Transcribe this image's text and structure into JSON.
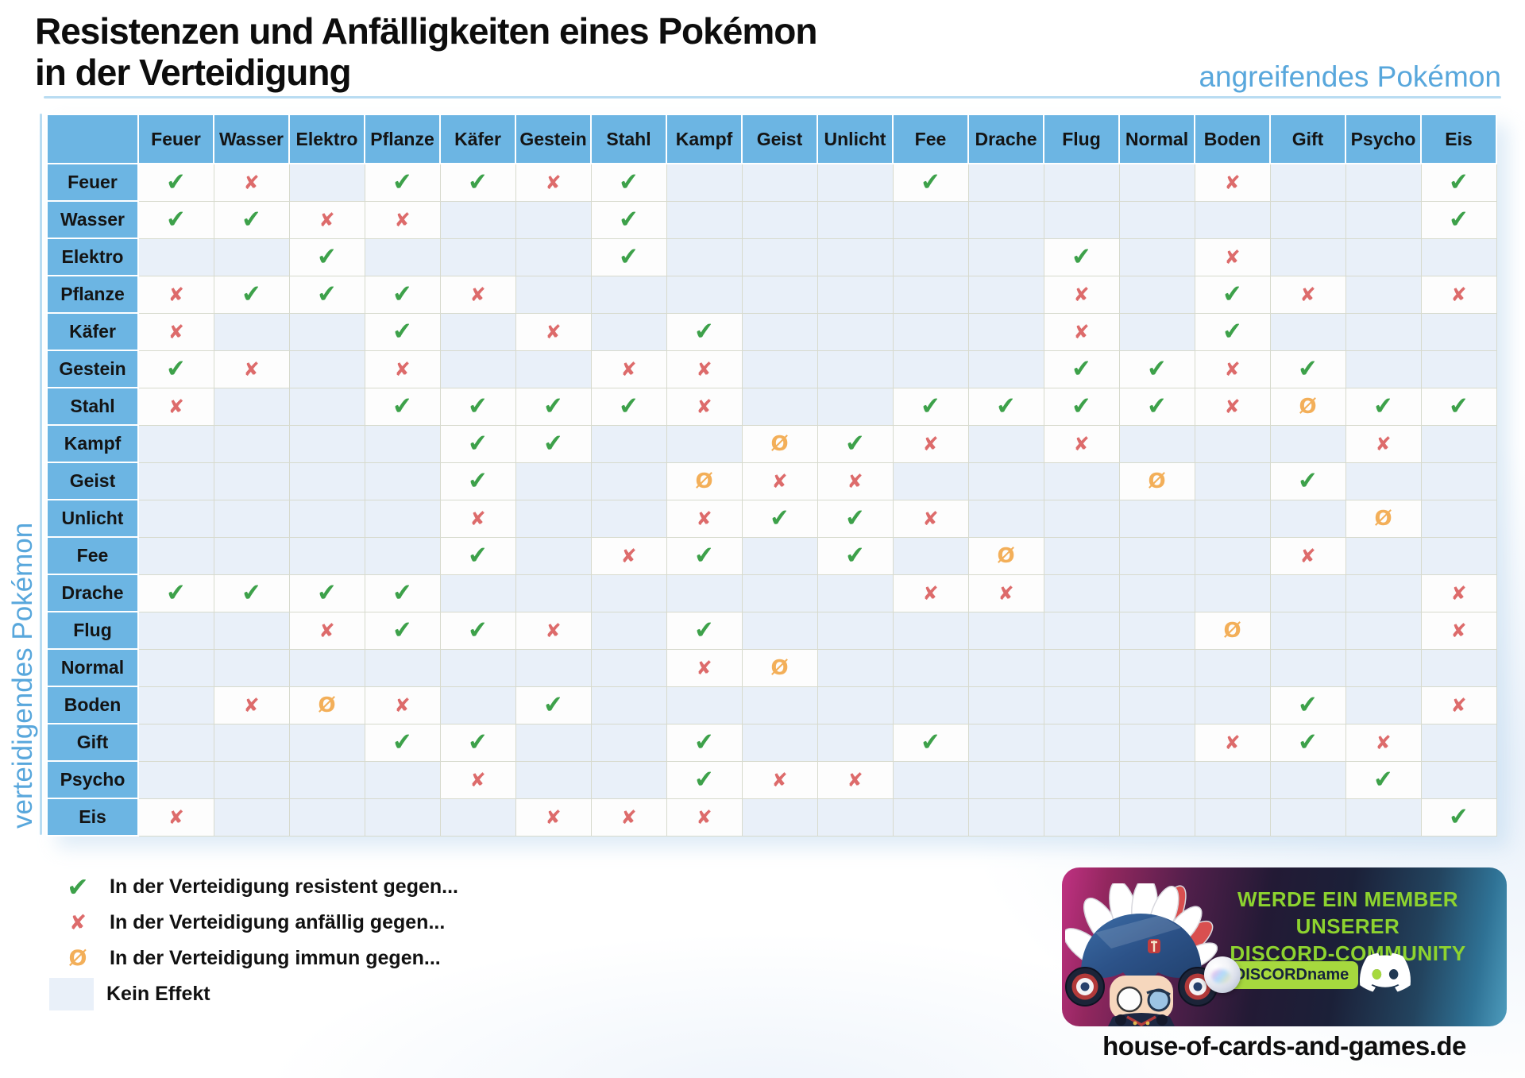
{
  "title": {
    "line1": "Resistenzen und Anfälligkeiten eines Pokémon",
    "line2": "in der Verteidigung"
  },
  "axis_labels": {
    "attacking": "angreifendes Pokémon",
    "defending": "verteidigendes Pokémon"
  },
  "marks": {
    "r": {
      "symbol": "✔",
      "color": "#3da14a",
      "meaning": "resistent"
    },
    "w": {
      "symbol": "✘",
      "color": "#dd6b6b",
      "meaning": "anfällig"
    },
    "i": {
      "symbol": "Ø",
      "color": "#f3af59",
      "meaning": "immun"
    }
  },
  "chart_data": {
    "type": "table",
    "title": "Resistenzen und Anfälligkeiten eines Pokémon in der Verteidigung",
    "x_axis_label": "angreifendes Pokémon",
    "y_axis_label": "verteidigendes Pokémon",
    "cell_codes": {
      "r": "in der Verteidigung resistent gegen",
      "w": "in der Verteidigung anfällig gegen",
      "i": "in der Verteidigung immun gegen",
      "": "kein Effekt"
    },
    "columns": [
      "Feuer",
      "Wasser",
      "Elektro",
      "Pflanze",
      "Käfer",
      "Gestein",
      "Stahl",
      "Kampf",
      "Geist",
      "Unlicht",
      "Fee",
      "Drache",
      "Flug",
      "Normal",
      "Boden",
      "Gift",
      "Psycho",
      "Eis"
    ],
    "rows": [
      {
        "name": "Feuer",
        "cells": [
          "r",
          "w",
          "",
          "r",
          "r",
          "w",
          "r",
          "",
          "",
          "",
          "r",
          "",
          "",
          "",
          "w",
          "",
          "",
          "r"
        ]
      },
      {
        "name": "Wasser",
        "cells": [
          "r",
          "r",
          "w",
          "w",
          "",
          "",
          "r",
          "",
          "",
          "",
          "",
          "",
          "",
          "",
          "",
          "",
          "",
          "r"
        ]
      },
      {
        "name": "Elektro",
        "cells": [
          "",
          "",
          "r",
          "",
          "",
          "",
          "r",
          "",
          "",
          "",
          "",
          "",
          "r",
          "",
          "w",
          "",
          "",
          ""
        ]
      },
      {
        "name": "Pflanze",
        "cells": [
          "w",
          "r",
          "r",
          "r",
          "w",
          "",
          "",
          "",
          "",
          "",
          "",
          "",
          "w",
          "",
          "r",
          "w",
          "",
          "w"
        ]
      },
      {
        "name": "Käfer",
        "cells": [
          "w",
          "",
          "",
          "r",
          "",
          "w",
          "",
          "r",
          "",
          "",
          "",
          "",
          "w",
          "",
          "r",
          "",
          "",
          ""
        ]
      },
      {
        "name": "Gestein",
        "cells": [
          "r",
          "w",
          "",
          "w",
          "",
          "",
          "w",
          "w",
          "",
          "",
          "",
          "",
          "r",
          "r",
          "w",
          "r",
          "",
          ""
        ]
      },
      {
        "name": "Stahl",
        "cells": [
          "w",
          "",
          "",
          "r",
          "r",
          "r",
          "r",
          "w",
          "",
          "",
          "r",
          "r",
          "r",
          "r",
          "w",
          "i",
          "r",
          "r"
        ]
      },
      {
        "name": "Kampf",
        "cells": [
          "",
          "",
          "",
          "",
          "r",
          "r",
          "",
          "",
          "i",
          "r",
          "w",
          "",
          "w",
          "",
          "",
          "",
          "w",
          ""
        ]
      },
      {
        "name": "Geist",
        "cells": [
          "",
          "",
          "",
          "",
          "r",
          "",
          "",
          "i",
          "w",
          "w",
          "",
          "",
          "",
          "i",
          "",
          "r",
          "",
          ""
        ]
      },
      {
        "name": "Unlicht",
        "cells": [
          "",
          "",
          "",
          "",
          "w",
          "",
          "",
          "w",
          "r",
          "r",
          "w",
          "",
          "",
          "",
          "",
          "",
          "i",
          ""
        ]
      },
      {
        "name": "Fee",
        "cells": [
          "",
          "",
          "",
          "",
          "r",
          "",
          "w",
          "r",
          "",
          "r",
          "",
          "i",
          "",
          "",
          "",
          "w",
          "",
          ""
        ]
      },
      {
        "name": "Drache",
        "cells": [
          "r",
          "r",
          "r",
          "r",
          "",
          "",
          "",
          "",
          "",
          "",
          "w",
          "w",
          "",
          "",
          "",
          "",
          "",
          "w"
        ]
      },
      {
        "name": "Flug",
        "cells": [
          "",
          "",
          "w",
          "r",
          "r",
          "w",
          "",
          "r",
          "",
          "",
          "",
          "",
          "",
          "",
          "i",
          "",
          "",
          "w"
        ]
      },
      {
        "name": "Normal",
        "cells": [
          "",
          "",
          "",
          "",
          "",
          "",
          "",
          "w",
          "i",
          "",
          "",
          "",
          "",
          "",
          "",
          "",
          "",
          ""
        ]
      },
      {
        "name": "Boden",
        "cells": [
          "",
          "w",
          "i",
          "w",
          "",
          "r",
          "",
          "",
          "",
          "",
          "",
          "",
          "",
          "",
          "",
          "r",
          "",
          "w"
        ]
      },
      {
        "name": "Gift",
        "cells": [
          "",
          "",
          "",
          "r",
          "r",
          "",
          "",
          "r",
          "",
          "",
          "r",
          "",
          "",
          "",
          "w",
          "r",
          "w",
          ""
        ]
      },
      {
        "name": "Psycho",
        "cells": [
          "",
          "",
          "",
          "",
          "w",
          "",
          "",
          "r",
          "w",
          "w",
          "",
          "",
          "",
          "",
          "",
          "",
          "r",
          ""
        ]
      },
      {
        "name": "Eis",
        "cells": [
          "w",
          "",
          "",
          "",
          "",
          "w",
          "w",
          "w",
          "",
          "",
          "",
          "",
          "",
          "",
          "",
          "",
          "",
          "r"
        ]
      }
    ]
  },
  "legend": {
    "items": [
      {
        "mark": "r",
        "text": "In der Verteidigung resistent gegen..."
      },
      {
        "mark": "w",
        "text": "In der Verteidigung anfällig gegen..."
      },
      {
        "mark": "i",
        "text": "In der Verteidigung immun gegen..."
      },
      {
        "mark": "none",
        "text": "Kein Effekt"
      }
    ]
  },
  "banner": {
    "heading_line1": "WERDE EIN MEMBER UNSERER",
    "heading_line2": "DISCORD-COMMUNITY",
    "pill_text": "DISCORDname",
    "colors": {
      "heading_green": "#8dd32f",
      "pill_green": "#a6d93e"
    }
  },
  "footer": {
    "website": "house-of-cards-and-games.de"
  },
  "colors": {
    "header_blue": "#6cb5e3",
    "cell_empty_blue": "#e9f0f9",
    "cell_filled_white": "#fdfdfd",
    "resist_green": "#3da14a",
    "weak_red": "#dd6b6b",
    "immune_orange": "#f3af59",
    "axis_label_blue": "#58a7dc",
    "rule_blue": "#b9dcf2"
  }
}
